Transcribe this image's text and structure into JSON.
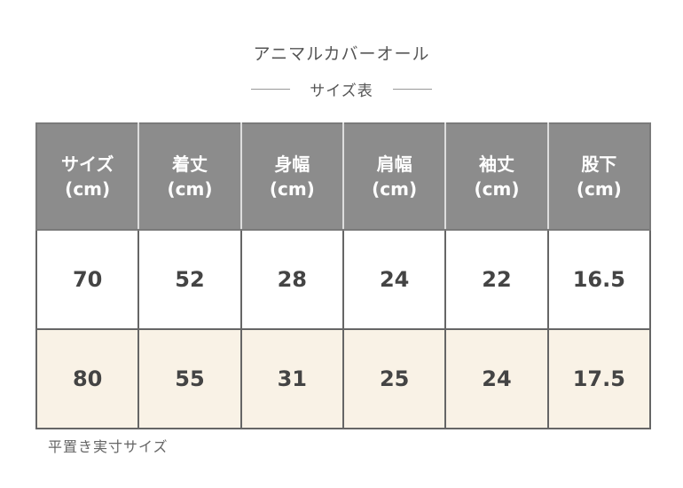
{
  "title": "アニマルカバーオール",
  "subtitle": "サイズ表",
  "table": {
    "headers": [
      {
        "label": "サイズ",
        "unit": "(cm)"
      },
      {
        "label": "着丈",
        "unit": "(cm)"
      },
      {
        "label": "身幅",
        "unit": "(cm)"
      },
      {
        "label": "肩幅",
        "unit": "(cm)"
      },
      {
        "label": "袖丈",
        "unit": "(cm)"
      },
      {
        "label": "股下",
        "unit": "(cm)"
      }
    ],
    "rows": [
      [
        "70",
        "52",
        "28",
        "24",
        "22",
        "16.5"
      ],
      [
        "80",
        "55",
        "31",
        "25",
        "24",
        "17.5"
      ]
    ]
  },
  "note": "平置き実寸サイズ",
  "colors": {
    "header_bg": "#8c8c8c",
    "row_alt_bg": "#f9f2e6",
    "border": "#666666"
  }
}
